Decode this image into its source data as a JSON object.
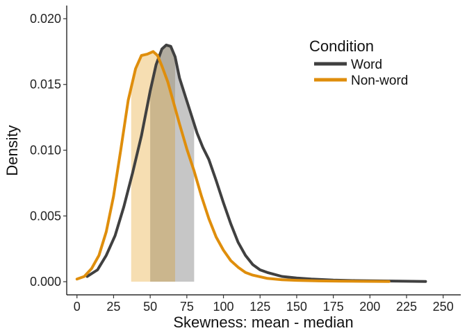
{
  "chart_data": {
    "type": "line",
    "title": "",
    "xlabel": "Skewness: mean - median",
    "ylabel": "Density",
    "xlim": [
      -7,
      262
    ],
    "ylim": [
      -0.001,
      0.021
    ],
    "x_ticks": [
      0,
      25,
      50,
      75,
      100,
      125,
      150,
      175,
      200,
      225,
      250
    ],
    "y_ticks": [
      0,
      0.005,
      0.01,
      0.015,
      0.02
    ],
    "y_tick_labels": [
      "0.000",
      "0.005",
      "0.010",
      "0.015",
      "0.020"
    ],
    "grid": false,
    "legend": {
      "title": "Condition",
      "position": "top-right"
    },
    "series": [
      {
        "name": "Word",
        "color": "#404040",
        "fill_color": "#a8a8a8",
        "interval_outer": [
          50,
          80
        ],
        "interval_inner": [
          50,
          67
        ],
        "x": [
          7,
          14,
          20,
          26,
          32,
          38,
          44,
          50,
          54,
          58,
          61,
          64,
          67,
          70,
          74,
          78,
          82,
          86,
          90,
          95,
          100,
          105,
          110,
          115,
          120,
          125,
          130,
          140,
          150,
          160,
          175,
          190,
          205,
          220,
          238
        ],
        "y": [
          0.0004,
          0.0009,
          0.002,
          0.0035,
          0.0057,
          0.0083,
          0.0111,
          0.0145,
          0.0165,
          0.0177,
          0.018,
          0.0179,
          0.0171,
          0.0155,
          0.0141,
          0.0127,
          0.0113,
          0.0102,
          0.0093,
          0.0077,
          0.006,
          0.0044,
          0.003,
          0.002,
          0.0013,
          0.0009,
          0.0007,
          0.0004,
          0.00028,
          0.0002,
          0.00012,
          8e-05,
          6e-05,
          4e-05,
          2e-05
        ]
      },
      {
        "name": "Non-word",
        "color": "#df8e0c",
        "fill_color": "#f5d8a4",
        "interval_outer": [
          37,
          67
        ],
        "interval_inner": [
          37,
          50
        ],
        "x": [
          0,
          5,
          10,
          15,
          20,
          25,
          30,
          35,
          40,
          44,
          48,
          52,
          55,
          58,
          62,
          66,
          70,
          75,
          80,
          85,
          90,
          95,
          100,
          105,
          110,
          115,
          120,
          130,
          140,
          150,
          165,
          180,
          195,
          213
        ],
        "y": [
          0.0002,
          0.0004,
          0.001,
          0.002,
          0.0038,
          0.0065,
          0.0101,
          0.0138,
          0.0162,
          0.0172,
          0.0173,
          0.0175,
          0.0172,
          0.0164,
          0.0152,
          0.0136,
          0.012,
          0.0101,
          0.0084,
          0.0065,
          0.0048,
          0.0034,
          0.0024,
          0.0016,
          0.0011,
          0.0007,
          0.0005,
          0.00025,
          0.00015,
          0.0001,
          6e-05,
          4e-05,
          3e-05,
          2e-05
        ]
      }
    ]
  }
}
